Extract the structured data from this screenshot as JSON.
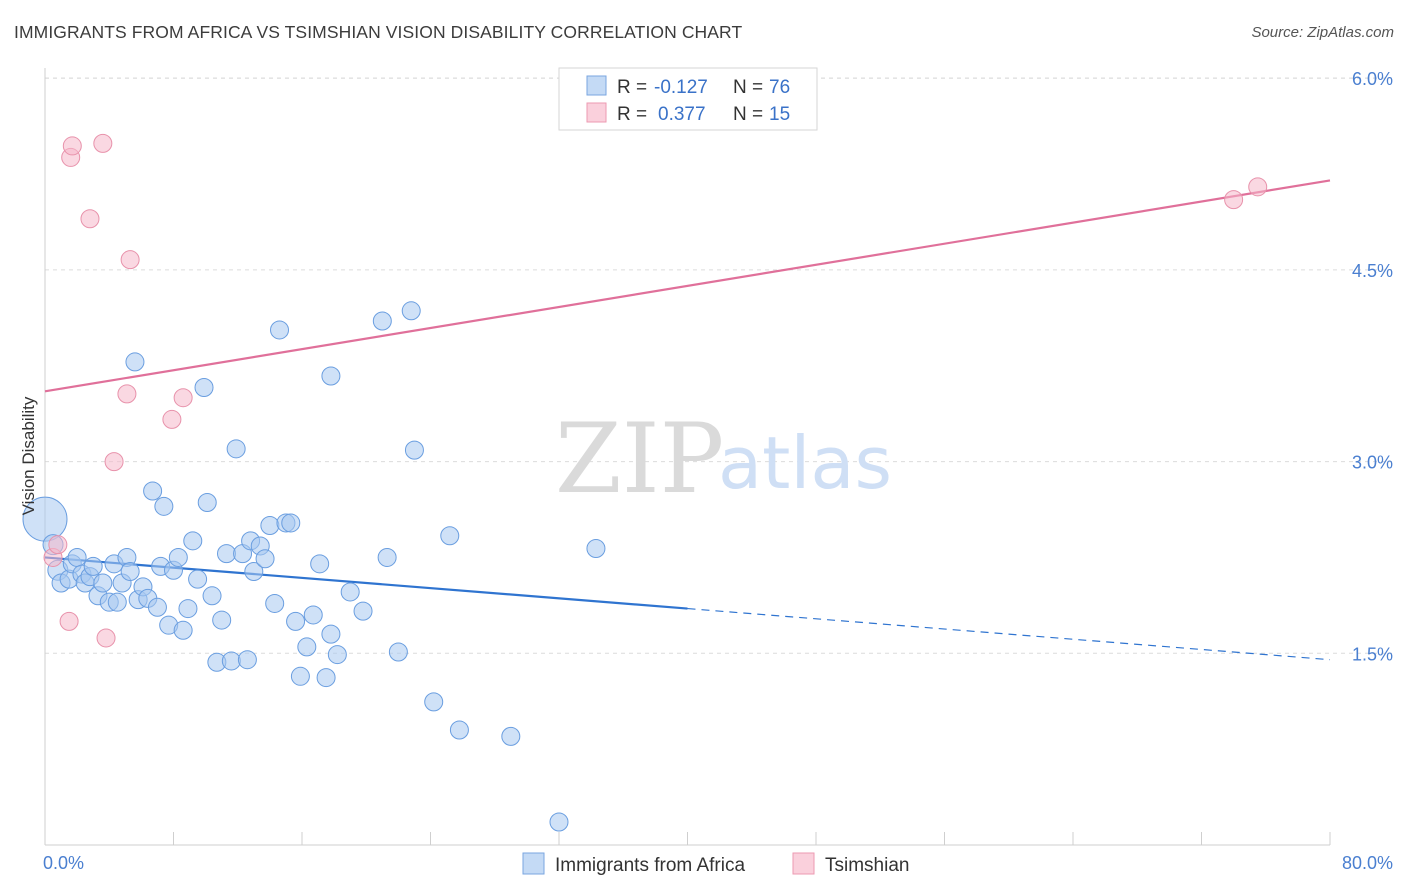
{
  "header": {
    "title": "IMMIGRANTS FROM AFRICA VS TSIMSHIAN VISION DISABILITY CORRELATION CHART",
    "source": "Source: ZipAtlas.com"
  },
  "watermark": {
    "zip": "ZIP",
    "atlas": "atlas"
  },
  "legend_top": {
    "rows": [
      {
        "r_label": "R =",
        "r_value": "-0.127",
        "n_label": "N =",
        "n_value": "76",
        "color": "#a8c8f0"
      },
      {
        "r_label": "R =",
        "r_value": "0.377",
        "n_label": "N =",
        "n_value": "15",
        "color": "#f6b8cb"
      }
    ]
  },
  "chart_data": {
    "type": "scatter",
    "title": "IMMIGRANTS FROM AFRICA VS TSIMSHIAN VISION DISABILITY CORRELATION CHART",
    "xlabel": "",
    "ylabel": "Vision Disability",
    "xlim": [
      0,
      80
    ],
    "ylim": [
      0,
      6.3
    ],
    "x_tick_labels": [
      "0.0%",
      "80.0%"
    ],
    "y_ticks": [
      1.5,
      3.0,
      4.5,
      6.0
    ],
    "y_tick_labels": [
      "1.5%",
      "3.0%",
      "4.5%",
      "6.0%"
    ],
    "grid": true,
    "legend_position": "top-center",
    "series": [
      {
        "name": "Immigrants from Africa",
        "color": "#a8c8f0",
        "stroke": "#6a9ee0",
        "line_color": "#2f74d0",
        "trend": {
          "x0": 0,
          "y0": 2.25,
          "x1": 40,
          "y1": 1.85,
          "dash_to_x": 80,
          "dash_to_y": 1.45
        },
        "points": [
          [
            0.0,
            2.55,
            22
          ],
          [
            0.5,
            2.35,
            10
          ],
          [
            0.8,
            2.15,
            10
          ],
          [
            1.0,
            2.05,
            9
          ],
          [
            1.5,
            2.08,
            9
          ],
          [
            1.7,
            2.2,
            9
          ],
          [
            2.0,
            2.25,
            9
          ],
          [
            2.3,
            2.12,
            9
          ],
          [
            2.5,
            2.05,
            9
          ],
          [
            2.8,
            2.1,
            9
          ],
          [
            3.0,
            2.18,
            9
          ],
          [
            3.3,
            1.95,
            9
          ],
          [
            3.6,
            2.05,
            9
          ],
          [
            4.0,
            1.9,
            9
          ],
          [
            4.3,
            2.2,
            9
          ],
          [
            4.5,
            1.9,
            9
          ],
          [
            4.8,
            2.05,
            9
          ],
          [
            5.1,
            2.25,
            9
          ],
          [
            5.3,
            2.14,
            9
          ],
          [
            5.6,
            3.78,
            9
          ],
          [
            5.8,
            1.92,
            9
          ],
          [
            6.1,
            2.02,
            9
          ],
          [
            6.4,
            1.93,
            9
          ],
          [
            6.7,
            2.77,
            9
          ],
          [
            7.0,
            1.86,
            9
          ],
          [
            7.2,
            2.18,
            9
          ],
          [
            7.4,
            2.65,
            9
          ],
          [
            7.7,
            1.72,
            9
          ],
          [
            8.0,
            2.15,
            9
          ],
          [
            8.3,
            2.25,
            9
          ],
          [
            8.6,
            1.68,
            9
          ],
          [
            8.9,
            1.85,
            9
          ],
          [
            9.2,
            2.38,
            9
          ],
          [
            9.5,
            2.08,
            9
          ],
          [
            9.9,
            3.58,
            9
          ],
          [
            10.1,
            2.68,
            9
          ],
          [
            10.4,
            1.95,
            9
          ],
          [
            10.7,
            1.43,
            9
          ],
          [
            11.0,
            1.76,
            9
          ],
          [
            11.3,
            2.28,
            9
          ],
          [
            11.6,
            1.44,
            9
          ],
          [
            11.9,
            3.1,
            9
          ],
          [
            12.3,
            2.28,
            9
          ],
          [
            12.6,
            1.45,
            9
          ],
          [
            12.8,
            2.38,
            9
          ],
          [
            13.0,
            2.14,
            9
          ],
          [
            13.4,
            2.34,
            9
          ],
          [
            13.7,
            2.24,
            9
          ],
          [
            14.0,
            2.5,
            9
          ],
          [
            14.3,
            1.89,
            9
          ],
          [
            14.6,
            4.03,
            9
          ],
          [
            15.0,
            2.52,
            9
          ],
          [
            15.3,
            2.52,
            9
          ],
          [
            15.6,
            1.75,
            9
          ],
          [
            15.9,
            1.32,
            9
          ],
          [
            16.3,
            1.55,
            9
          ],
          [
            16.7,
            1.8,
            9
          ],
          [
            17.1,
            2.2,
            9
          ],
          [
            17.5,
            1.31,
            9
          ],
          [
            17.8,
            3.67,
            9
          ],
          [
            17.8,
            1.65,
            9
          ],
          [
            18.2,
            1.49,
            9
          ],
          [
            19.0,
            1.98,
            9
          ],
          [
            19.8,
            1.83,
            9
          ],
          [
            21.0,
            4.1,
            9
          ],
          [
            21.3,
            2.25,
            9
          ],
          [
            22.0,
            1.51,
            9
          ],
          [
            22.8,
            4.18,
            9
          ],
          [
            23.0,
            3.09,
            9
          ],
          [
            25.2,
            2.42,
            9
          ],
          [
            24.2,
            1.12,
            9
          ],
          [
            25.8,
            0.9,
            9
          ],
          [
            29.0,
            0.85,
            9
          ],
          [
            32.0,
            0.18,
            9
          ],
          [
            34.3,
            2.32,
            9
          ]
        ]
      },
      {
        "name": "Tsimshian",
        "color": "#f6b8cb",
        "stroke": "#e892ab",
        "line_color": "#e0709a",
        "trend": {
          "x0": 0,
          "y0": 3.55,
          "x1": 80,
          "y1": 5.2
        },
        "points": [
          [
            0.5,
            2.25,
            9
          ],
          [
            0.8,
            2.35,
            9
          ],
          [
            1.5,
            1.75,
            9
          ],
          [
            1.6,
            5.38,
            9
          ],
          [
            1.7,
            5.47,
            9
          ],
          [
            2.8,
            4.9,
            9
          ],
          [
            3.6,
            5.49,
            9
          ],
          [
            3.8,
            1.62,
            9
          ],
          [
            4.3,
            3.0,
            9
          ],
          [
            5.1,
            3.53,
            9
          ],
          [
            5.3,
            4.58,
            9
          ],
          [
            7.9,
            3.33,
            9
          ],
          [
            8.6,
            3.5,
            9
          ],
          [
            74.0,
            5.05,
            9
          ],
          [
            75.5,
            5.15,
            9
          ]
        ]
      }
    ]
  }
}
